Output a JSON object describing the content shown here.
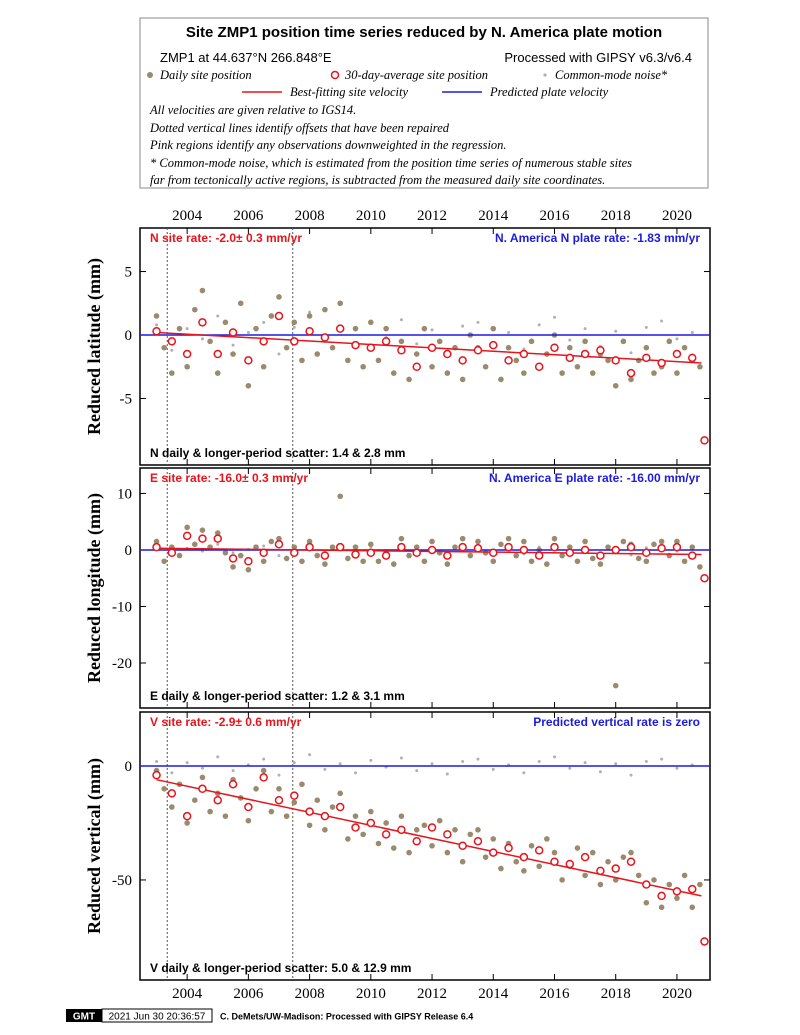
{
  "header": {
    "title": "Site ZMP1 position time series reduced by N. America plate motion",
    "site": "ZMP1 at 44.637°N 266.848°E",
    "processing": "Processed with GIPSY v6.3/v6.4",
    "notes": [
      "All velocities are given relative to IGS14.",
      "Dotted vertical lines identify offsets that have been repaired",
      "Pink regions identify any observations downweighted in the regression.",
      "* Common-mode noise, which is estimated from the position time series of numerous stable sites",
      "far from tectonically active regions, is subtracted from the measured daily site coordinates."
    ]
  },
  "legend": [
    {
      "name": "Daily site position",
      "color": "#9a8a6e"
    },
    {
      "name": "30-day-average site position",
      "color": "#e8141c"
    },
    {
      "name": "Common-mode noise*",
      "color": "#b0b0b0"
    },
    {
      "name": "Best-fitting site velocity",
      "color": "#e8141c"
    },
    {
      "name": "Predicted plate velocity",
      "color": "#1c1ce0"
    }
  ],
  "offsets": [
    2003.35,
    2007.45
  ],
  "chart_data": [
    {
      "type": "scatter",
      "ylabel": "Reduced latitude (mm)",
      "rate_label": "N site rate:  -2.0± 0.3 mm/yr",
      "plate_label": "N. America N plate rate: -1.83 mm/yr",
      "scatter_label": "N daily & longer-period scatter:   1.4 &   2.8 mm",
      "xlim": [
        2002.46,
        2021.08
      ],
      "xticks": [
        2004,
        2006,
        2008,
        2010,
        2012,
        2014,
        2016,
        2018,
        2020
      ],
      "x_label_side": "top",
      "ylim": [
        -10.24,
        8.43
      ],
      "yticks": [
        -5,
        0,
        5
      ],
      "noise": {
        "x": [
          2003,
          2003.5,
          2004,
          2004.5,
          2005,
          2005.5,
          2006,
          2006.5,
          2007,
          2007.5,
          2008,
          2008.5,
          2009,
          2009.5,
          2010,
          2010.5,
          2011,
          2011.5,
          2012,
          2012.5,
          2013,
          2013.5,
          2014,
          2014.5,
          2015,
          2015.5,
          2016,
          2016.5,
          2017,
          2017.5,
          2018,
          2018.5,
          2019,
          2019.5,
          2020,
          2020.5
        ],
        "values": [
          0.8,
          -1.2,
          0.5,
          -0.3,
          1.5,
          -0.8,
          0.2,
          1.0,
          -1.5,
          0.6,
          1.8,
          -0.5,
          0.3,
          -1.0,
          0.9,
          -0.2,
          1.2,
          -0.7,
          0.4,
          -1.3,
          0.7,
          1.0,
          -0.6,
          0.2,
          -1.1,
          0.8,
          1.4,
          -0.4,
          0.5,
          -0.9,
          0.3,
          -1.4,
          0.6,
          1.1,
          -0.3,
          0.2
        ]
      },
      "daily": {
        "x": [
          2003,
          2003.25,
          2003.5,
          2003.75,
          2004,
          2004.25,
          2004.5,
          2004.75,
          2005,
          2005.25,
          2005.5,
          2005.75,
          2006,
          2006.25,
          2006.5,
          2006.75,
          2007,
          2007.25,
          2007.5,
          2007.75,
          2008,
          2008.25,
          2008.5,
          2008.75,
          2009,
          2009.25,
          2009.5,
          2009.75,
          2010,
          2010.25,
          2010.5,
          2010.75,
          2011,
          2011.25,
          2011.5,
          2011.75,
          2012,
          2012.25,
          2012.5,
          2012.75,
          2013,
          2013.25,
          2013.5,
          2013.75,
          2014,
          2014.25,
          2014.5,
          2014.75,
          2015,
          2015.25,
          2015.5,
          2015.75,
          2016,
          2016.25,
          2016.5,
          2016.75,
          2017,
          2017.25,
          2017.5,
          2017.75,
          2018,
          2018.25,
          2018.5,
          2018.75,
          2019,
          2019.25,
          2019.5,
          2019.75,
          2020,
          2020.25,
          2020.5,
          2020.75
        ],
        "values": [
          1.5,
          -1.0,
          -3.0,
          0.5,
          -2.5,
          2.0,
          3.5,
          -0.5,
          -3.0,
          1.0,
          -1.5,
          2.5,
          -4.0,
          0.5,
          -2.5,
          1.5,
          3.0,
          -1.0,
          1.0,
          -2.0,
          1.5,
          -1.5,
          2.0,
          -1.0,
          2.5,
          -2.0,
          0.5,
          -2.5,
          1.0,
          -2.0,
          0.5,
          -3.0,
          -0.5,
          -3.5,
          -1.5,
          0.5,
          -2.5,
          -0.5,
          -3.0,
          -1.0,
          -3.5,
          0.0,
          -1.0,
          -2.5,
          0.5,
          -3.5,
          -1.0,
          -2.0,
          -3.0,
          -0.5,
          -2.5,
          -1.5,
          0.0,
          -3.0,
          -1.0,
          -2.5,
          -0.5,
          -3.0,
          -1.5,
          -2.0,
          -4.0,
          -0.5,
          -3.5,
          -2.0,
          -1.0,
          -3.0,
          -2.5,
          -0.5,
          -3.0,
          -1.0,
          -2.0,
          -2.5
        ]
      },
      "fit": {
        "x": [
          2003.0,
          2020.8
        ],
        "values": [
          0.2,
          -2.2
        ]
      },
      "plate": {
        "x": [
          2002.46,
          2021.08
        ],
        "values": [
          0,
          0
        ]
      },
      "average": {
        "x": [
          2003,
          2003.5,
          2004,
          2004.5,
          2005,
          2005.5,
          2006,
          2006.5,
          2007,
          2007.5,
          2008,
          2008.5,
          2009,
          2009.5,
          2010,
          2010.5,
          2011,
          2011.5,
          2012,
          2012.5,
          2013,
          2013.5,
          2014,
          2014.5,
          2015,
          2015.5,
          2016,
          2016.5,
          2017,
          2017.5,
          2018,
          2018.5,
          2019,
          2019.5,
          2020,
          2020.5,
          2020.9
        ],
        "values": [
          0.3,
          -0.5,
          -1.5,
          1.0,
          -1.5,
          0.2,
          -2.0,
          -0.5,
          1.5,
          -0.5,
          0.3,
          -0.2,
          0.5,
          -0.8,
          -1.0,
          -0.5,
          -1.2,
          -2.5,
          -1.0,
          -1.5,
          -2.0,
          -1.2,
          -0.8,
          -2.0,
          -1.5,
          -2.5,
          -1.0,
          -1.8,
          -1.5,
          -1.2,
          -2.0,
          -3.0,
          -1.8,
          -2.2,
          -1.5,
          -1.8,
          -8.3
        ]
      }
    },
    {
      "type": "scatter",
      "ylabel": "Reduced longitude (mm)",
      "rate_label": "E site rate: -16.0± 0.3 mm/yr",
      "plate_label": "N. America E plate rate: -16.00 mm/yr",
      "scatter_label": "E daily & longer-period scatter:   1.2 &   3.1 mm",
      "xlim": [
        2002.46,
        2021.08
      ],
      "xticks": [
        2004,
        2006,
        2008,
        2010,
        2012,
        2014,
        2016,
        2018,
        2020
      ],
      "x_label_side": "none",
      "ylim": [
        -27.96,
        14.5
      ],
      "yticks": [
        -20,
        -10,
        0,
        10
      ],
      "noise": {
        "x": [
          2003,
          2003.5,
          2004,
          2004.5,
          2005,
          2005.5,
          2006,
          2006.5,
          2007,
          2007.5,
          2008,
          2008.5,
          2009,
          2009.5,
          2010,
          2010.5,
          2011,
          2011.5,
          2012,
          2012.5,
          2013,
          2013.5,
          2014,
          2014.5,
          2015,
          2015.5,
          2016,
          2016.5,
          2017,
          2017.5,
          2018,
          2018.5,
          2019,
          2019.5,
          2020,
          2020.5
        ],
        "values": [
          0.5,
          -0.8,
          0.3,
          -0.2,
          1.0,
          -0.5,
          0.1,
          0.7,
          -1.0,
          0.4,
          1.2,
          -0.3,
          0.2,
          -0.7,
          0.6,
          -0.1,
          0.8,
          -0.5,
          0.3,
          -0.9,
          0.5,
          0.7,
          -0.4,
          0.1,
          -0.7,
          0.5,
          0.9,
          -0.3,
          0.3,
          -0.6,
          0.2,
          -0.9,
          0.4,
          0.7,
          -0.2,
          0.1
        ]
      },
      "daily": {
        "x": [
          2003,
          2003.25,
          2003.5,
          2003.75,
          2004,
          2004.25,
          2004.5,
          2004.75,
          2005,
          2005.25,
          2005.5,
          2005.75,
          2006,
          2006.25,
          2006.5,
          2006.75,
          2007,
          2007.25,
          2007.5,
          2007.75,
          2008,
          2008.25,
          2008.5,
          2008.75,
          2009,
          2009.25,
          2009.5,
          2009.75,
          2010,
          2010.25,
          2010.5,
          2010.75,
          2011,
          2011.25,
          2011.5,
          2011.75,
          2012,
          2012.25,
          2012.5,
          2012.75,
          2013,
          2013.25,
          2013.5,
          2013.75,
          2014,
          2014.25,
          2014.5,
          2014.75,
          2015,
          2015.25,
          2015.5,
          2015.75,
          2016,
          2016.25,
          2016.5,
          2016.75,
          2017,
          2017.25,
          2017.5,
          2017.75,
          2018,
          2018.25,
          2018.5,
          2018.75,
          2019,
          2019.25,
          2019.5,
          2019.75,
          2020,
          2020.25,
          2020.5,
          2020.75
        ],
        "values": [
          1.5,
          -2.0,
          0.5,
          -1.0,
          4.0,
          1.0,
          3.5,
          0.5,
          3.0,
          -0.5,
          -3.0,
          -1.0,
          -3.5,
          0.5,
          -2.0,
          1.5,
          2.0,
          -1.5,
          0.5,
          -2.0,
          1.5,
          -1.0,
          -2.5,
          0.5,
          9.5,
          -1.5,
          0.5,
          -2.0,
          1.0,
          -2.0,
          -0.5,
          -2.5,
          2.0,
          -1.0,
          0.5,
          -2.0,
          1.5,
          -0.5,
          -2.5,
          0.5,
          2.0,
          -1.0,
          1.5,
          -0.5,
          -2.0,
          1.0,
          2.0,
          -1.0,
          1.5,
          -2.0,
          0.0,
          -2.5,
          2.0,
          -1.0,
          0.5,
          -2.0,
          1.5,
          -1.5,
          -2.5,
          0.5,
          -24.0,
          1.5,
          1.0,
          -1.5,
          -2.0,
          1.0,
          1.5,
          -1.0,
          1.5,
          -2.0,
          0.5,
          -3.0
        ]
      },
      "fit": {
        "x": [
          2003.0,
          2020.8
        ],
        "values": [
          0.3,
          -0.8
        ]
      },
      "plate": {
        "x": [
          2002.46,
          2021.08
        ],
        "values": [
          0,
          0
        ]
      },
      "average": {
        "x": [
          2003,
          2003.5,
          2004,
          2004.5,
          2005,
          2005.5,
          2006,
          2006.5,
          2007,
          2007.5,
          2008,
          2008.5,
          2009,
          2009.5,
          2010,
          2010.5,
          2011,
          2011.5,
          2012,
          2012.5,
          2013,
          2013.5,
          2014,
          2014.5,
          2015,
          2015.5,
          2016,
          2016.5,
          2017,
          2017.5,
          2018,
          2018.5,
          2019,
          2019.5,
          2020,
          2020.5,
          2020.9
        ],
        "values": [
          0.5,
          -0.5,
          2.5,
          2.0,
          2.0,
          -1.5,
          -2.0,
          -0.5,
          1.0,
          -0.5,
          0.5,
          -1.0,
          0.5,
          -0.8,
          -0.5,
          -1.0,
          0.5,
          -0.5,
          0.0,
          -1.0,
          0.5,
          0.3,
          -0.5,
          0.5,
          0.0,
          -1.0,
          0.5,
          -0.5,
          0.0,
          -1.0,
          0.0,
          0.5,
          -0.5,
          0.3,
          0.5,
          -1.0,
          -5.0
        ]
      }
    },
    {
      "type": "scatter",
      "ylabel": "Reduced vertical (mm)",
      "rate_label": "V site rate:  -2.9± 0.6 mm/yr",
      "plate_label": "Predicted vertical rate is zero",
      "scatter_label": "V daily & longer-period scatter:   5.0 &  12.9 mm",
      "xlim": [
        2002.46,
        2021.08
      ],
      "xticks": [
        2004,
        2006,
        2008,
        2010,
        2012,
        2014,
        2016,
        2018,
        2020
      ],
      "x_label_side": "bottom",
      "ylim": [
        -93.9,
        23.7
      ],
      "yticks": [
        -50,
        0
      ],
      "noise": {
        "x": [
          2003,
          2003.5,
          2004,
          2004.5,
          2005,
          2005.5,
          2006,
          2006.5,
          2007,
          2007.5,
          2008,
          2008.5,
          2009,
          2009.5,
          2010,
          2010.5,
          2011,
          2011.5,
          2012,
          2012.5,
          2013,
          2013.5,
          2014,
          2014.5,
          2015,
          2015.5,
          2016,
          2016.5,
          2017,
          2017.5,
          2018,
          2018.5,
          2019,
          2019.5,
          2020,
          2020.5
        ],
        "values": [
          2,
          -3,
          1.5,
          -1,
          4,
          -2,
          0.5,
          3,
          -4,
          1.5,
          5,
          -1.5,
          1,
          -3,
          2.5,
          -0.5,
          3.5,
          -2,
          1,
          -3.5,
          2,
          3,
          -1.5,
          0.5,
          -3,
          2,
          4,
          -1,
          1.5,
          -2.5,
          1,
          -4,
          2,
          3,
          -1,
          0.5
        ]
      },
      "daily": {
        "x": [
          2003,
          2003.25,
          2003.5,
          2003.75,
          2004,
          2004.25,
          2004.5,
          2004.75,
          2005,
          2005.25,
          2005.5,
          2005.75,
          2006,
          2006.25,
          2006.5,
          2006.75,
          2007,
          2007.25,
          2007.5,
          2007.75,
          2008,
          2008.25,
          2008.5,
          2008.75,
          2009,
          2009.25,
          2009.5,
          2009.75,
          2010,
          2010.25,
          2010.5,
          2010.75,
          2011,
          2011.25,
          2011.5,
          2011.75,
          2012,
          2012.25,
          2012.5,
          2012.75,
          2013,
          2013.25,
          2013.5,
          2013.75,
          2014,
          2014.25,
          2014.5,
          2014.75,
          2015,
          2015.25,
          2015.5,
          2015.75,
          2016,
          2016.25,
          2016.5,
          2016.75,
          2017,
          2017.25,
          2017.5,
          2017.75,
          2018,
          2018.25,
          2018.5,
          2018.75,
          2019,
          2019.25,
          2019.5,
          2019.75,
          2020,
          2020.25,
          2020.5,
          2020.75
        ],
        "values": [
          -2,
          -10,
          -18,
          -8,
          -25,
          -15,
          -5,
          -20,
          -12,
          -22,
          -6,
          -14,
          -24,
          -10,
          -2,
          -20,
          -10,
          -22,
          -16,
          -8,
          -26,
          -15,
          -28,
          -18,
          -12,
          -32,
          -22,
          -30,
          -20,
          -34,
          -25,
          -36,
          -22,
          -38,
          -28,
          -26,
          -35,
          -24,
          -38,
          -28,
          -42,
          -30,
          -28,
          -40,
          -32,
          -45,
          -34,
          -42,
          -46,
          -35,
          -44,
          -32,
          -38,
          -50,
          -44,
          -36,
          -48,
          -38,
          -52,
          -42,
          -50,
          -40,
          -38,
          -48,
          -60,
          -50,
          -62,
          -52,
          -58,
          -48,
          -62,
          -52
        ]
      },
      "fit": {
        "x": [
          2003.0,
          2020.8
        ],
        "values": [
          -6,
          -57
        ]
      },
      "plate": {
        "x": [
          2002.46,
          2021.08
        ],
        "values": [
          0,
          0
        ]
      },
      "average": {
        "x": [
          2003,
          2003.5,
          2004,
          2004.5,
          2005,
          2005.5,
          2006,
          2006.5,
          2007,
          2007.5,
          2008,
          2008.5,
          2009,
          2009.5,
          2010,
          2010.5,
          2011,
          2011.5,
          2012,
          2012.5,
          2013,
          2013.5,
          2014,
          2014.5,
          2015,
          2015.5,
          2016,
          2016.5,
          2017,
          2017.5,
          2018,
          2018.5,
          2019,
          2019.5,
          2020,
          2020.5,
          2020.9
        ],
        "values": [
          -4,
          -12,
          -22,
          -10,
          -15,
          -8,
          -18,
          -5,
          -15,
          -13,
          -20,
          -22,
          -18,
          -27,
          -25,
          -30,
          -28,
          -33,
          -27,
          -30,
          -35,
          -33,
          -38,
          -36,
          -40,
          -37,
          -42,
          -43,
          -40,
          -46,
          -45,
          -42,
          -52,
          -57,
          -55,
          -54,
          -77
        ]
      }
    }
  ],
  "footer": {
    "logo": "GMT",
    "timestamp": "2021 Jun 30 20:36:57",
    "credit": "C. DeMets/UW-Madison: Processed with GIPSY Release 6.4"
  }
}
